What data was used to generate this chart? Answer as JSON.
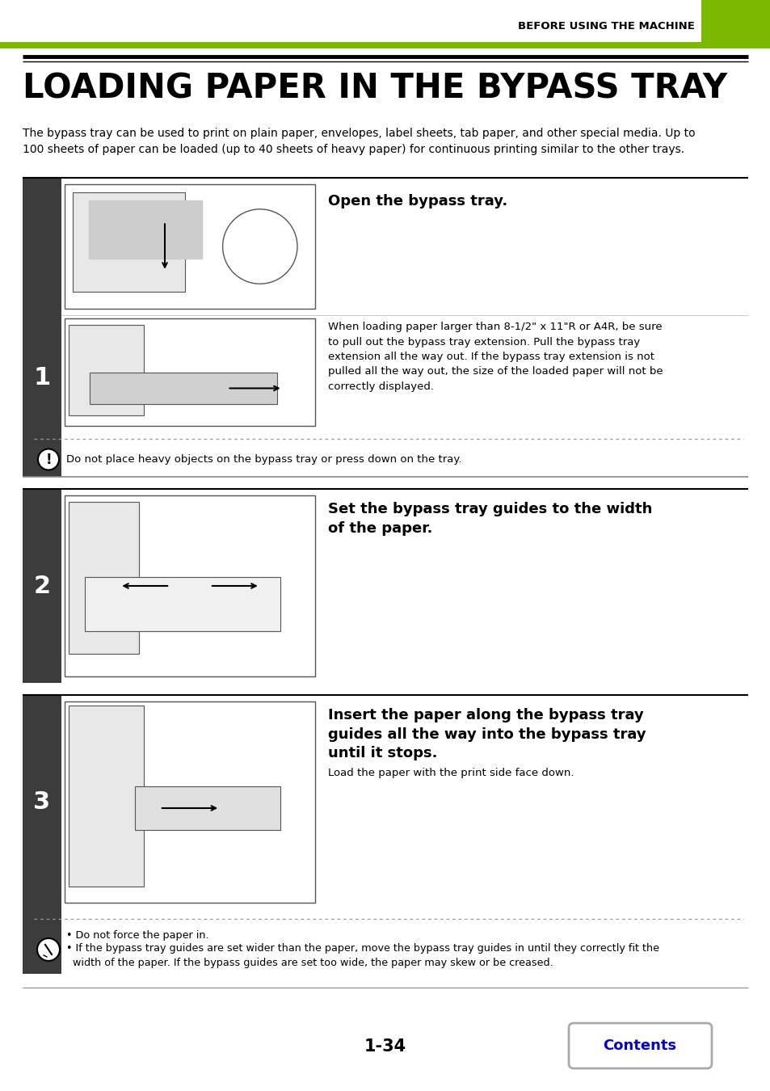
{
  "header_text": "BEFORE USING THE MACHINE",
  "header_green_color": "#7cb800",
  "title": "LOADING PAPER IN THE BYPASS TRAY",
  "intro_text": "The bypass tray can be used to print on plain paper, envelopes, label sheets, tab paper, and other special media. Up to\n100 sheets of paper can be loaded (up to 40 sheets of heavy paper) for continuous printing similar to the other trays.",
  "step1_number": "1",
  "step1a_header": "Open the bypass tray.",
  "step1b_note": "When loading paper larger than 8-1/2\" x 11\"R or A4R, be sure\nto pull out the bypass tray extension. Pull the bypass tray\nextension all the way out. If the bypass tray extension is not\npulled all the way out, the size of the loaded paper will not be\ncorrectly displayed.",
  "step1_caution": "Do not place heavy objects on the bypass tray or press down on the tray.",
  "step2_number": "2",
  "step2_header": "Set the bypass tray guides to the width\nof the paper.",
  "step3_number": "3",
  "step3_header": "Insert the paper along the bypass tray\nguides all the way into the bypass tray\nuntil it stops.",
  "step3_subtext": "Load the paper with the print side face down.",
  "step3_note1": "• Do not force the paper in.",
  "step3_note2": "• If the bypass tray guides are set wider than the paper, move the bypass tray guides in until they correctly fit the\n  width of the paper. If the bypass guides are set too wide, the paper may skew or be creased.",
  "page_number": "1-34",
  "contents_text": "Contents",
  "sidebar_color": "#3c3c3c",
  "bg_color": "#ffffff",
  "black": "#000000",
  "blue": "#0000cc",
  "gray_border": "#aaaaaa",
  "green": "#7cb800"
}
